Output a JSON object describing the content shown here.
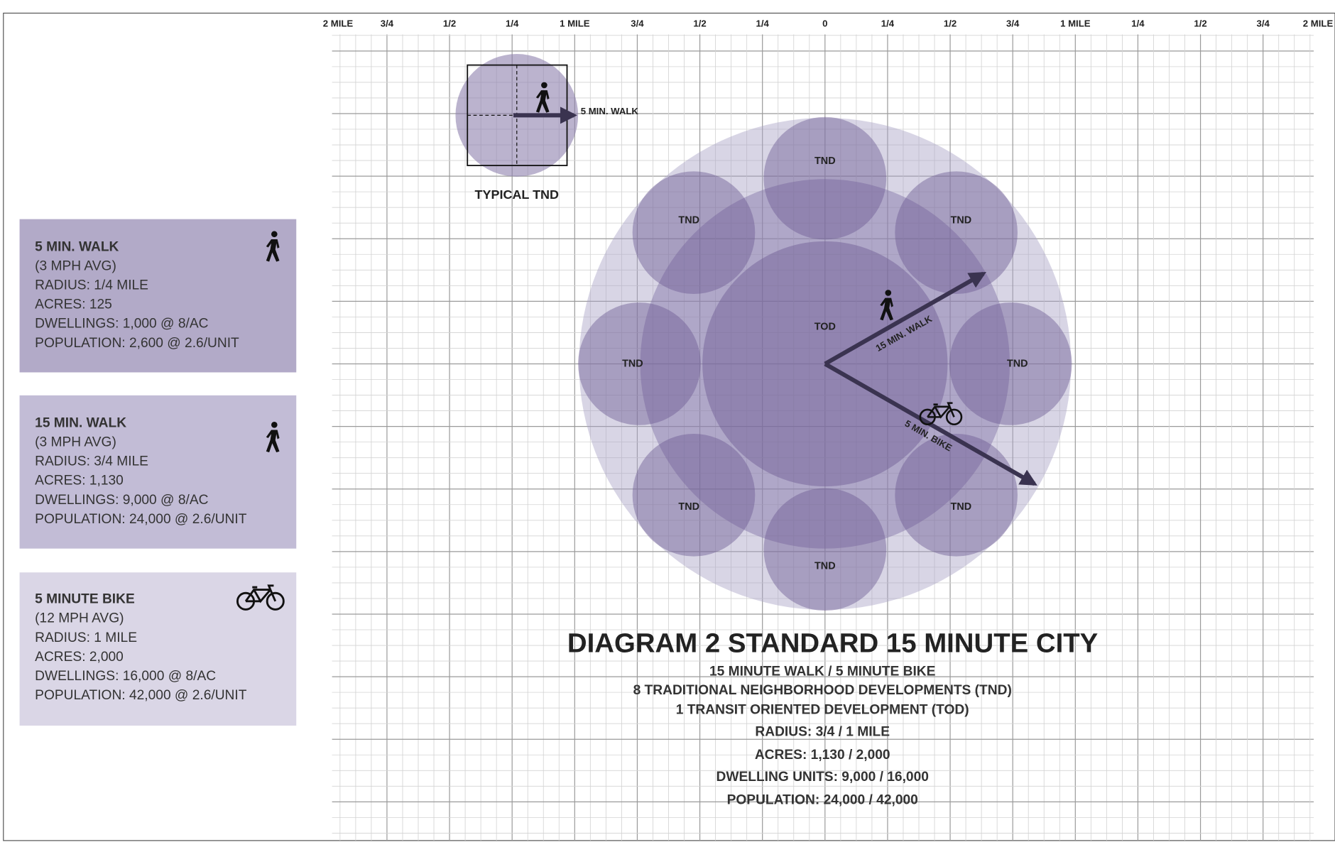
{
  "scale": {
    "ticks": [
      "2 MILE",
      "3/4",
      "1/2",
      "1/4",
      "1 MILE",
      "3/4",
      "1/2",
      "1/4",
      "0",
      "1/4",
      "1/2",
      "3/4",
      "1 MILE",
      "1/4",
      "1/2",
      "3/4",
      "2 MILE"
    ]
  },
  "legend": [
    {
      "title": "5 MIN. WALK",
      "lines": [
        "(3 MPH AVG)",
        "RADIUS: 1/4 MILE",
        "ACRES: 125",
        "DWELLINGS: 1,000 @ 8/AC",
        "POPULATION: 2,600 @ 2.6/UNIT"
      ]
    },
    {
      "title": "15 MIN. WALK",
      "lines": [
        "(3 MPH AVG)",
        "RADIUS: 3/4 MILE",
        "ACRES: 1,130",
        "DWELLINGS: 9,000 @ 8/AC",
        "POPULATION: 24,000 @ 2.6/UNIT"
      ]
    },
    {
      "title": "5 MINUTE BIKE",
      "lines": [
        "(12 MPH AVG)",
        "RADIUS: 1 MILE",
        "ACRES: 2,000",
        "DWELLINGS: 16,000 @ 8/AC",
        "POPULATION: 42,000 @ 2.6/UNIT"
      ]
    }
  ],
  "typical_tnd": {
    "label": "TYPICAL TND",
    "arrow_label": "5 MIN. WALK"
  },
  "city": {
    "tnd_labels": [
      "TND",
      "TND",
      "TND",
      "TND",
      "TND",
      "TND",
      "TND",
      "TND"
    ],
    "tod_label": "TOD",
    "walk_label": "15 MIN. WALK",
    "bike_label": "5 MIN. BIKE"
  },
  "title": "DIAGRAM 2 STANDARD 15 MINUTE CITY",
  "subtitle_lines": [
    "15 MINUTE WALK / 5 MINUTE BIKE",
    "8 TRADITIONAL NEIGHBORHOOD DEVELOPMENTS (TND)",
    "1 TRANSIT ORIENTED DEVELOPMENT (TOD)",
    "RADIUS: 3/4 / 1 MILE",
    "ACRES: 1,130 / 2,000",
    "DWELLING UNITS: 9,000 / 16,000",
    "POPULATION: 24,000 / 42,000"
  ]
}
